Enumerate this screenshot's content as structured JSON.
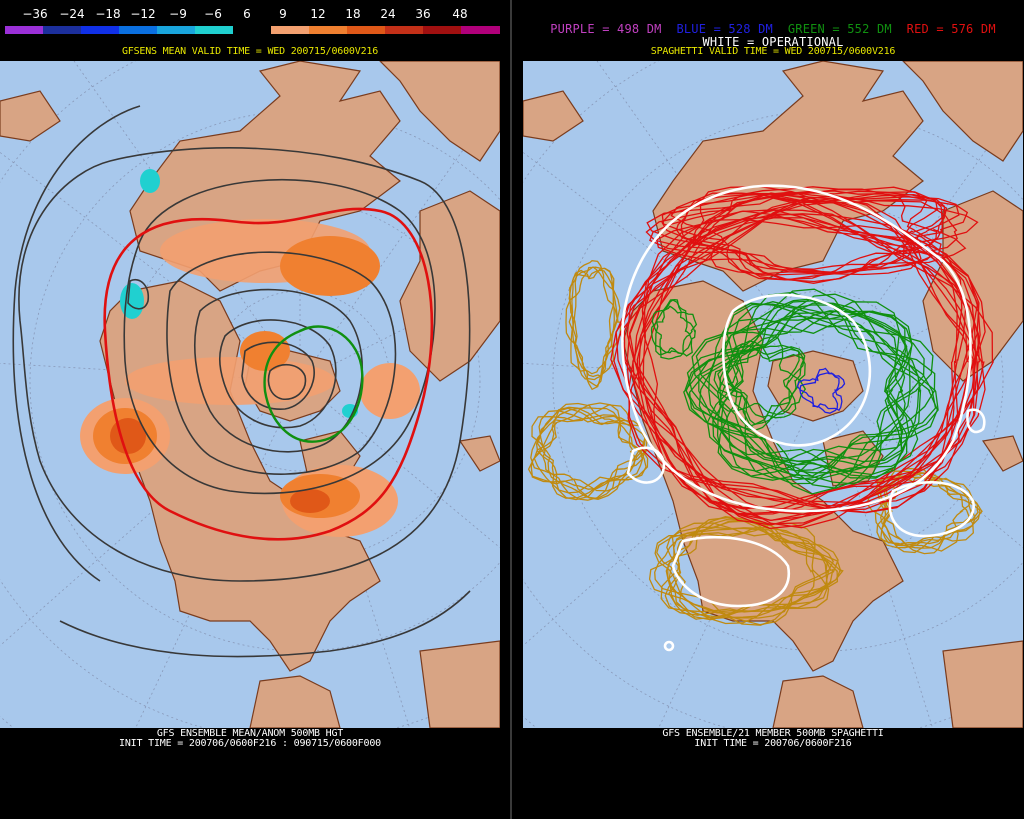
{
  "left_panel": {
    "colorbar": {
      "labels": [
        "−36",
        "−24",
        "−18",
        "−12",
        "−9",
        "−6",
        "6",
        "9",
        "12",
        "18",
        "24",
        "36",
        "48"
      ],
      "colors": [
        "#9b30d8",
        "#1c2f9c",
        "#1030e8",
        "#0a6fe0",
        "#19a5dc",
        "#20d0d0",
        "#000000",
        "#f3a070",
        "#f08030",
        "#e05818",
        "#c43018",
        "#a01010",
        "#b0007a"
      ]
    },
    "title": "GFSENS MEAN VALID TIME = WED 200715/0600V216",
    "caption_line1": "GFS ENSEMBLE MEAN/ANOM 500MB HGT",
    "caption_line2": "INIT TIME = 200706/0600F216 : 090715/0600F000"
  },
  "right_panel": {
    "legend": {
      "purple": "PURPLE = 498 DM",
      "blue": "BLUE = 528 DM",
      "green": "GREEN = 552 DM",
      "red": "RED = 576 DM",
      "white": "WHITE = OPERATIONAL"
    },
    "title": "SPAGHETTI VALID TIME = WED 200715/0600V216",
    "caption_line1": "GFS ENSEMBLE/21 MEMBER 500MB SPAGHETTI",
    "caption_line2": "INIT TIME = 200706/0600F216"
  },
  "colors": {
    "ocean": "#a8c8ec",
    "land": "#d8a484",
    "border": "#7a3c1e",
    "grid": "#8898b8",
    "purple": "#c040c0",
    "blue": "#2020e0",
    "green": "#109010",
    "red": "#e01010",
    "white": "#ffffff",
    "gold": "#c08a10"
  }
}
